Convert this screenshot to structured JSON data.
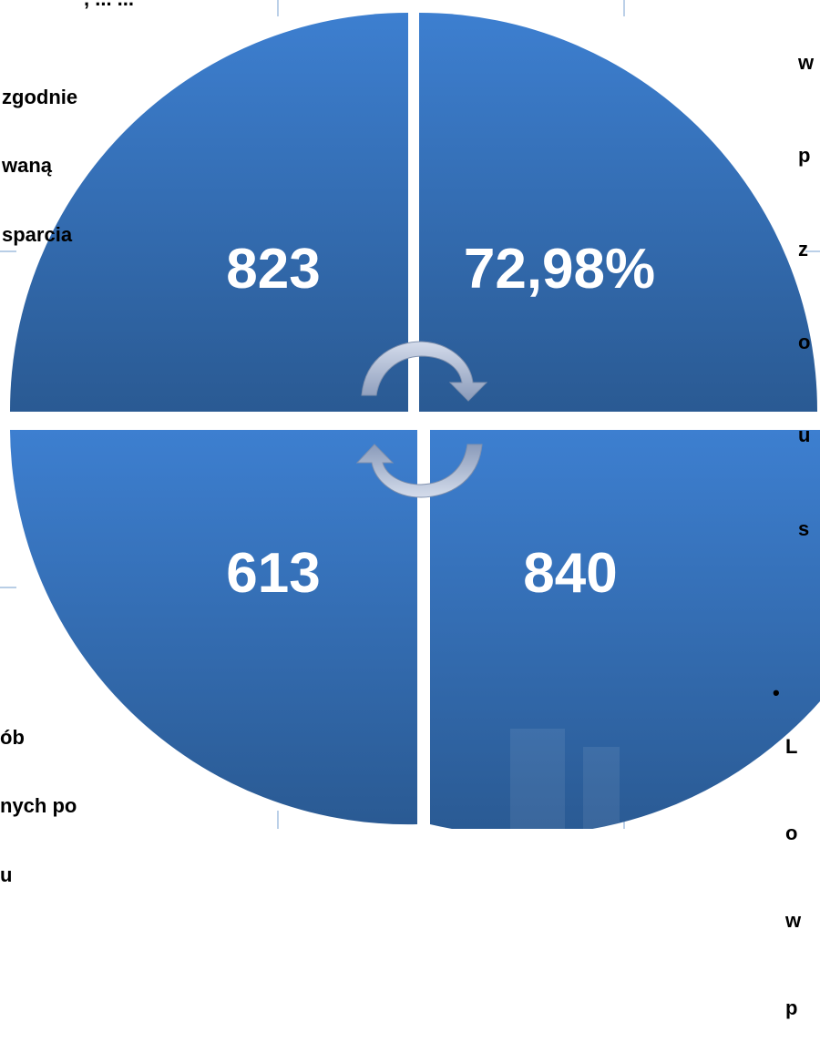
{
  "diagram": {
    "quadrants": [
      {
        "id": "top-left",
        "value": "823"
      },
      {
        "id": "top-right",
        "value": "72,98%"
      },
      {
        "id": "bottom-left",
        "value": "613"
      },
      {
        "id": "bottom-right",
        "value": "840"
      }
    ],
    "colors": {
      "fill_light": "#3d7fd0",
      "fill_dark": "#2a5a93",
      "grid_line": "#8eb0d8",
      "arrow_light": "#d4dceb",
      "arrow_dark": "#8a9bba",
      "label": "#ffffff"
    },
    "icons": [
      "cycle-arrow-top-icon",
      "cycle-arrow-bottom-icon"
    ]
  },
  "callouts": {
    "top_left_partial": ", ... ... ",
    "top_left": [
      "zgodnie",
      "waną",
      "sparcia"
    ],
    "top_right": [
      "w",
      "p",
      "z",
      "o",
      "u",
      "s"
    ],
    "bottom_left": [
      "ób",
      "nych po",
      "u"
    ],
    "bottom_right": [
      "L",
      "o",
      "w",
      "p"
    ],
    "bottom_right_bullet": "•"
  }
}
